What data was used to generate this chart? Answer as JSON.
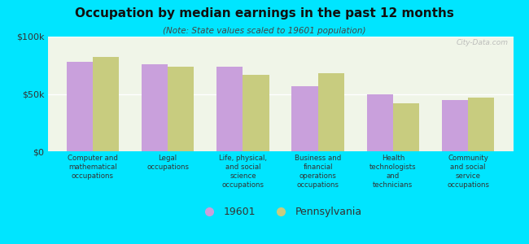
{
  "title": "Occupation by median earnings in the past 12 months",
  "subtitle": "(Note: State values scaled to 19601 population)",
  "categories": [
    "Computer and\nmathematical\noccupations",
    "Legal\noccupations",
    "Life, physical,\nand social\nscience\noccupations",
    "Business and\nfinancial\noperations\noccupations",
    "Health\ntechnologists\nand\ntechnicians",
    "Community\nand social\nservice\noccupations"
  ],
  "values_19601": [
    78000,
    76000,
    74000,
    57000,
    50000,
    45000
  ],
  "values_pa": [
    82000,
    74000,
    67000,
    68000,
    42000,
    47000
  ],
  "color_19601": "#c9a0dc",
  "color_pa": "#c8cc7f",
  "background_color": "#00e5ff",
  "plot_bg_color": "#f0f5e8",
  "ylim": [
    0,
    100000
  ],
  "ytick_labels": [
    "$0",
    "$50k",
    "$100k"
  ],
  "legend_labels": [
    "19601",
    "Pennsylvania"
  ],
  "bar_width": 0.35,
  "watermark": "City-Data.com"
}
